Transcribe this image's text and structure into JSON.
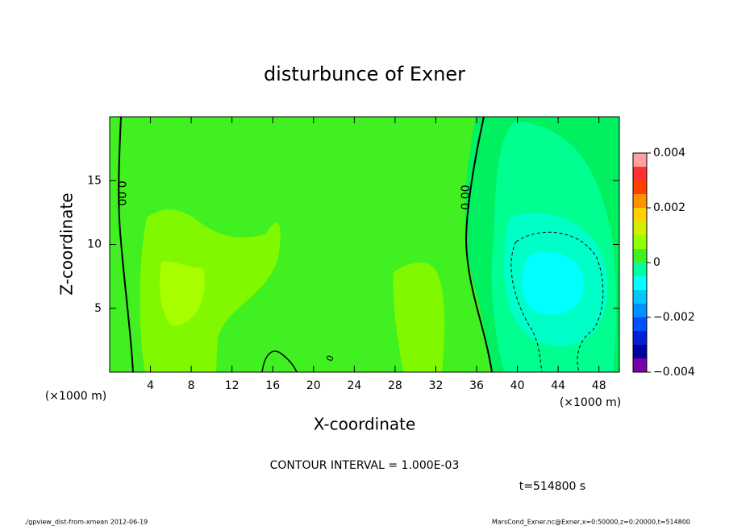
{
  "chart_data": {
    "type": "contour",
    "title": "disturbunce of Exner",
    "x_label": "X-coordinate",
    "y_label": "Z-coordinate",
    "x_unit_label": "(×1000 m)",
    "y_unit_label": "(×1000 m)",
    "xlim": [
      0,
      50
    ],
    "xticks": [
      4,
      8,
      12,
      16,
      20,
      24,
      28,
      32,
      36,
      40,
      44,
      48
    ],
    "ylim": [
      0,
      20
    ],
    "yticks": [
      5,
      10,
      15
    ],
    "contour_labels": [
      "0.00",
      "0.00",
      "0"
    ],
    "contour_interval_label": "CONTOUR INTERVAL = 1.000E-03",
    "time_label": "t=514800 s",
    "colorbar": {
      "levels": [
        -0.004,
        -0.0035,
        -0.003,
        -0.0025,
        -0.002,
        -0.0015,
        -0.001,
        -0.0005,
        0,
        0.0005,
        0.001,
        0.0015,
        0.002,
        0.0025,
        0.003,
        0.0035,
        0.004
      ],
      "colors": [
        "#7a00a8",
        "#0000a0",
        "#0020d8",
        "#0050ff",
        "#0090ff",
        "#00c8ff",
        "#00ffff",
        "#00ffa0",
        "#40f020",
        "#90ff00",
        "#d0f000",
        "#ffd000",
        "#ff9000",
        "#ff4000",
        "#ff3030",
        "#ffa0a0"
      ],
      "ticks": [
        {
          "value": 0.004,
          "label": "0.004"
        },
        {
          "value": 0.002,
          "label": "0.002"
        },
        0,
        {
          "value": -0.002,
          "label": "−0.002"
        },
        {
          "value": -0.004,
          "label": "−0.004"
        }
      ]
    },
    "footer_left": "./gpview_dist-from-xmean  2012-06-19",
    "footer_right": "MarsCond_Exner.nc@Exner,x=0:50000,z=0:20000,t=514800"
  }
}
